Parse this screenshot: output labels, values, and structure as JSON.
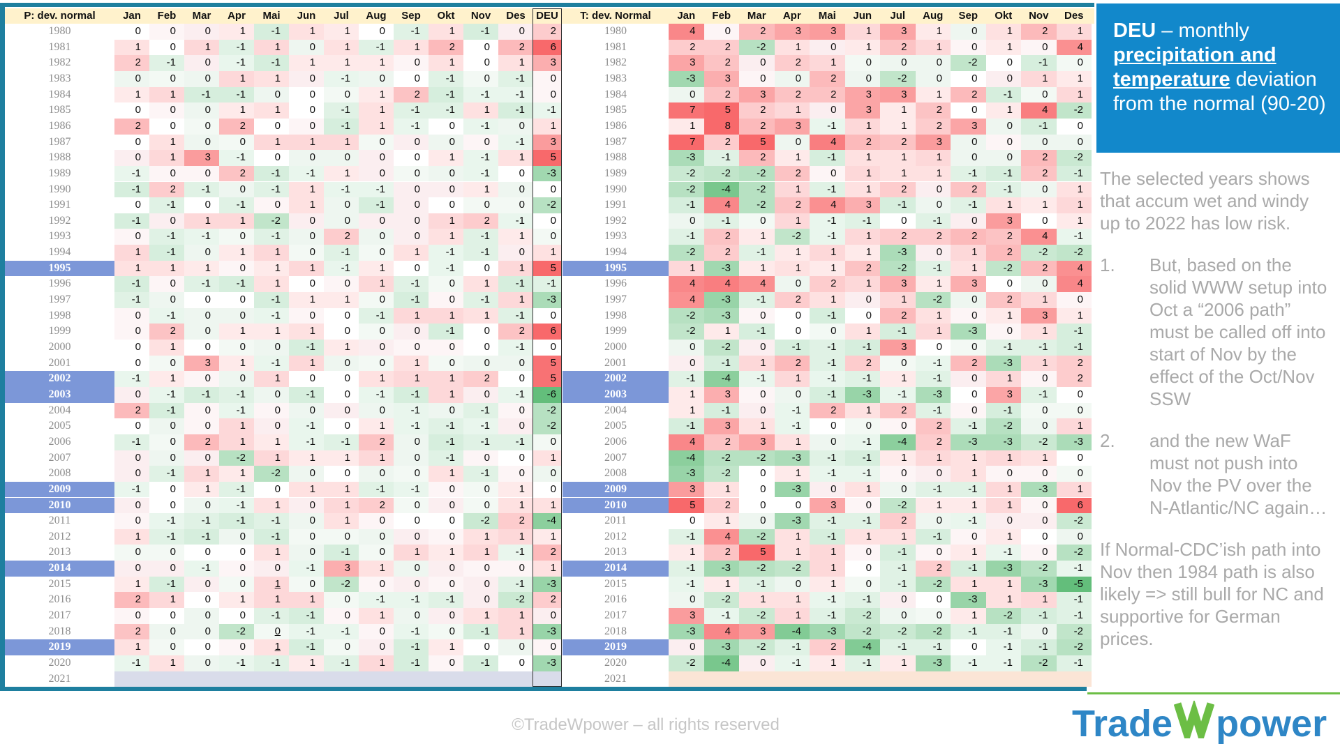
{
  "header": {
    "left_title": "P: dev. normal",
    "right_title": "T: dev. Normal",
    "deu_col": "DEU",
    "months": [
      "Jan",
      "Feb",
      "Mar",
      "Apr",
      "Mai",
      "Jun",
      "Jul",
      "Aug",
      "Sep",
      "Okt",
      "Nov",
      "Des"
    ]
  },
  "sidebar": {
    "title": {
      "bold_prefix": "DEU",
      "rest": " – monthly ",
      "underlined": "precipitation and temperature",
      "suffix": " deviation from the normal (90-20)"
    },
    "paragraph1": "The selected years shows that accum wet and windy up to 2022 has low risk.",
    "list": [
      {
        "num": "1.",
        "text": "But, based on the solid WWW setup into Oct a “2006 path” must be called off into start of Nov by the effect of the Oct/Nov SSW"
      },
      {
        "num": "2.",
        "text": "and the new WaF must not push into Nov the PV over the N-Atlantic/NC again…"
      }
    ],
    "paragraph2": "If Normal-CDC’ish path into Nov then 1984 path is also likely => still bull for NC and supportive for German prices."
  },
  "footer": {
    "copyright": "©TradeWpower – all rights reserved"
  },
  "logo": {
    "part1": "Trade",
    "w": "W",
    "part2": "power"
  },
  "colors": {
    "frame_teal": "#1e7f9f",
    "header_bg": "#fff2cc",
    "highlight_blue": "#7c97d8",
    "heat_positive_max": "#f8696b",
    "heat_negative_max": "#63be7b",
    "blank_row_left": "#d9dcea",
    "blank_row_right": "#fbe5d6",
    "sidebar_blue": "#1288cb",
    "sidebar_text_gray": "#a9a9a9",
    "logo_blue": "#2e86c6",
    "logo_green": "#6cbe45",
    "footer_gray": "#c6c6c6"
  },
  "chart_data": [
    {
      "type": "heatmap",
      "title": "P: dev. normal",
      "columns": [
        "Jan",
        "Feb",
        "Mar",
        "Apr",
        "Mai",
        "Jun",
        "Jul",
        "Aug",
        "Sep",
        "Okt",
        "Nov",
        "Des",
        "DEU"
      ],
      "years": [
        1980,
        1981,
        1982,
        1983,
        1984,
        1985,
        1986,
        1987,
        1988,
        1989,
        1990,
        1991,
        1992,
        1993,
        1994,
        1995,
        1996,
        1997,
        1998,
        1999,
        2000,
        2001,
        2002,
        2003,
        2004,
        2005,
        2006,
        2007,
        2008,
        2009,
        2010,
        2011,
        2012,
        2013,
        2014,
        2015,
        2016,
        2017,
        2018,
        2019,
        2020,
        2021
      ],
      "highlighted_years": [
        1995,
        2002,
        2003,
        2009,
        2010,
        2014,
        2019
      ],
      "underlined_cells": [
        [
          2015,
          "Mai"
        ],
        [
          2018,
          "Mai"
        ],
        [
          2019,
          "Mai"
        ]
      ],
      "values": [
        [
          0,
          0,
          0,
          1,
          -1,
          1,
          1,
          0,
          -1,
          1,
          -1,
          0,
          2
        ],
        [
          1,
          0,
          1,
          -1,
          1,
          0,
          1,
          -1,
          1,
          2,
          0,
          2,
          6
        ],
        [
          2,
          -1,
          0,
          -1,
          -1,
          1,
          1,
          1,
          0,
          1,
          0,
          1,
          3
        ],
        [
          0,
          0,
          0,
          1,
          1,
          0,
          -1,
          0,
          0,
          -1,
          0,
          -1,
          0
        ],
        [
          1,
          1,
          -1,
          -1,
          0,
          0,
          0,
          1,
          2,
          -1,
          -1,
          -1,
          0
        ],
        [
          0,
          0,
          0,
          1,
          1,
          0,
          -1,
          1,
          -1,
          -1,
          1,
          -1,
          -1
        ],
        [
          2,
          0,
          0,
          2,
          0,
          0,
          -1,
          1,
          -1,
          0,
          -1,
          0,
          1
        ],
        [
          0,
          1,
          0,
          0,
          1,
          1,
          1,
          0,
          0,
          0,
          0,
          -1,
          3
        ],
        [
          0,
          1,
          3,
          -1,
          0,
          0,
          0,
          0,
          0,
          1,
          -1,
          1,
          5
        ],
        [
          -1,
          0,
          0,
          2,
          -1,
          -1,
          1,
          0,
          0,
          0,
          -1,
          0,
          -3
        ],
        [
          -1,
          2,
          -1,
          0,
          -1,
          1,
          -1,
          -1,
          0,
          0,
          1,
          0,
          0
        ],
        [
          0,
          -1,
          0,
          -1,
          0,
          1,
          0,
          -1,
          0,
          0,
          0,
          0,
          -2
        ],
        [
          -1,
          0,
          1,
          1,
          -2,
          0,
          0,
          0,
          0,
          1,
          2,
          -1,
          0
        ],
        [
          0,
          -1,
          -1,
          0,
          -1,
          0,
          2,
          0,
          0,
          1,
          -1,
          1,
          0
        ],
        [
          1,
          -1,
          0,
          1,
          1,
          0,
          -1,
          0,
          1,
          -1,
          -1,
          0,
          1
        ],
        [
          1,
          1,
          1,
          0,
          1,
          1,
          -1,
          1,
          0,
          -1,
          0,
          1,
          5
        ],
        [
          -1,
          0,
          -1,
          -1,
          1,
          0,
          0,
          1,
          -1,
          0,
          1,
          -1,
          -1
        ],
        [
          -1,
          0,
          0,
          0,
          -1,
          1,
          1,
          0,
          -1,
          0,
          -1,
          1,
          -3
        ],
        [
          0,
          -1,
          0,
          0,
          -1,
          0,
          0,
          -1,
          1,
          1,
          1,
          -1,
          0
        ],
        [
          0,
          2,
          0,
          1,
          1,
          1,
          0,
          0,
          0,
          -1,
          0,
          2,
          6
        ],
        [
          0,
          1,
          0,
          0,
          0,
          -1,
          1,
          0,
          0,
          0,
          0,
          -1,
          0
        ],
        [
          0,
          0,
          3,
          1,
          -1,
          1,
          0,
          0,
          1,
          0,
          0,
          0,
          5
        ],
        [
          -1,
          1,
          0,
          0,
          1,
          0,
          0,
          1,
          1,
          1,
          2,
          0,
          5
        ],
        [
          0,
          -1,
          -1,
          -1,
          0,
          -1,
          0,
          -1,
          -1,
          1,
          0,
          -1,
          -6
        ],
        [
          2,
          -1,
          0,
          -1,
          0,
          0,
          0,
          0,
          -1,
          0,
          -1,
          0,
          -2
        ],
        [
          0,
          0,
          0,
          1,
          0,
          -1,
          0,
          1,
          -1,
          -1,
          -1,
          0,
          -2
        ],
        [
          -1,
          0,
          2,
          1,
          1,
          -1,
          -1,
          2,
          0,
          -1,
          -1,
          -1,
          0
        ],
        [
          0,
          0,
          0,
          -2,
          1,
          1,
          1,
          1,
          0,
          -1,
          0,
          0,
          1
        ],
        [
          0,
          -1,
          1,
          1,
          -2,
          0,
          0,
          0,
          0,
          1,
          -1,
          0,
          0
        ],
        [
          -1,
          0,
          1,
          -1,
          0,
          1,
          1,
          -1,
          -1,
          0,
          0,
          1,
          0
        ],
        [
          0,
          0,
          0,
          -1,
          1,
          0,
          1,
          2,
          0,
          0,
          0,
          1,
          1
        ],
        [
          0,
          -1,
          -1,
          -1,
          -1,
          0,
          1,
          0,
          0,
          0,
          -2,
          2,
          -4
        ],
        [
          1,
          -1,
          -1,
          0,
          -1,
          0,
          0,
          0,
          0,
          0,
          1,
          1,
          1
        ],
        [
          0,
          0,
          0,
          0,
          1,
          0,
          -1,
          0,
          1,
          1,
          1,
          -1,
          2
        ],
        [
          0,
          0,
          -1,
          0,
          0,
          -1,
          3,
          1,
          0,
          0,
          0,
          0,
          1
        ],
        [
          1,
          -1,
          0,
          0,
          1,
          0,
          -2,
          0,
          0,
          0,
          0,
          -1,
          -3
        ],
        [
          2,
          1,
          0,
          1,
          1,
          1,
          0,
          -1,
          -1,
          -1,
          0,
          -2,
          2
        ],
        [
          0,
          0,
          0,
          0,
          -1,
          -1,
          0,
          1,
          0,
          0,
          1,
          1,
          0
        ],
        [
          2,
          0,
          0,
          -2,
          0,
          -1,
          -1,
          0,
          -1,
          0,
          -1,
          1,
          -3
        ],
        [
          1,
          0,
          0,
          0,
          1,
          -1,
          0,
          0,
          -1,
          1,
          0,
          0,
          0
        ],
        [
          -1,
          1,
          0,
          -1,
          -1,
          1,
          -1,
          1,
          -1,
          0,
          -1,
          0,
          -3
        ],
        []
      ]
    },
    {
      "type": "heatmap",
      "title": "T: dev. Normal",
      "columns": [
        "Jan",
        "Feb",
        "Mar",
        "Apr",
        "Mai",
        "Jun",
        "Jul",
        "Aug",
        "Sep",
        "Okt",
        "Nov",
        "Des"
      ],
      "years": [
        1980,
        1981,
        1982,
        1983,
        1984,
        1985,
        1986,
        1987,
        1988,
        1989,
        1990,
        1991,
        1992,
        1993,
        1994,
        1995,
        1996,
        1997,
        1998,
        1999,
        2000,
        2001,
        2002,
        2003,
        2004,
        2005,
        2006,
        2007,
        2008,
        2009,
        2010,
        2011,
        2012,
        2013,
        2014,
        2015,
        2016,
        2017,
        2018,
        2019,
        2020,
        2021
      ],
      "highlighted_years": [
        1995,
        2002,
        2003,
        2009,
        2010,
        2014,
        2019
      ],
      "underlined_cells": [],
      "values": [
        [
          4,
          0,
          2,
          3,
          3,
          1,
          3,
          1,
          0,
          1,
          2,
          1
        ],
        [
          2,
          2,
          -2,
          1,
          0,
          1,
          2,
          1,
          0,
          1,
          0,
          4
        ],
        [
          3,
          2,
          0,
          2,
          1,
          0,
          0,
          0,
          -2,
          0,
          -1,
          0
        ],
        [
          -3,
          3,
          0,
          0,
          2,
          0,
          -2,
          0,
          0,
          0,
          1,
          1
        ],
        [
          0,
          2,
          3,
          2,
          2,
          3,
          3,
          1,
          2,
          -1,
          0,
          1
        ],
        [
          7,
          5,
          2,
          1,
          0,
          3,
          1,
          2,
          0,
          1,
          4,
          -2
        ],
        [
          1,
          8,
          2,
          3,
          -1,
          1,
          1,
          2,
          3,
          0,
          -1,
          0
        ],
        [
          7,
          2,
          5,
          0,
          4,
          2,
          2,
          3,
          0,
          0,
          0,
          0
        ],
        [
          -3,
          -1,
          2,
          1,
          -1,
          1,
          1,
          1,
          0,
          0,
          2,
          -2
        ],
        [
          -2,
          -2,
          -2,
          2,
          0,
          1,
          1,
          1,
          -1,
          -1,
          2,
          -1
        ],
        [
          -2,
          -4,
          -2,
          1,
          -1,
          1,
          2,
          0,
          2,
          -1,
          0,
          1
        ],
        [
          -1,
          4,
          -2,
          2,
          4,
          3,
          -1,
          0,
          -1,
          1,
          1,
          1
        ],
        [
          0,
          -1,
          0,
          1,
          -1,
          -1,
          0,
          -1,
          0,
          3,
          0,
          1
        ],
        [
          -1,
          2,
          1,
          -2,
          -1,
          1,
          2,
          2,
          2,
          2,
          4,
          -1
        ],
        [
          -2,
          2,
          -1,
          1,
          1,
          1,
          -3,
          0,
          1,
          2,
          -2,
          -2
        ],
        [
          1,
          -3,
          1,
          1,
          1,
          2,
          -2,
          -1,
          1,
          -2,
          2,
          4
        ],
        [
          4,
          4,
          4,
          0,
          2,
          1,
          3,
          1,
          3,
          0,
          0,
          4
        ],
        [
          4,
          -3,
          -1,
          2,
          1,
          0,
          1,
          -2,
          0,
          2,
          1,
          0
        ],
        [
          -2,
          -3,
          0,
          0,
          -1,
          0,
          2,
          1,
          0,
          1,
          3,
          1
        ],
        [
          -2,
          1,
          -1,
          0,
          0,
          1,
          -1,
          1,
          -3,
          0,
          1,
          -1
        ],
        [
          0,
          -2,
          0,
          -1,
          -1,
          -1,
          3,
          0,
          0,
          -1,
          -1,
          -1
        ],
        [
          0,
          -1,
          1,
          2,
          -1,
          2,
          0,
          -1,
          2,
          -3,
          1,
          2
        ],
        [
          -1,
          -4,
          -1,
          1,
          -1,
          -1,
          1,
          -1,
          0,
          1,
          0,
          2
        ],
        [
          1,
          3,
          0,
          0,
          -1,
          -3,
          -1,
          -3,
          0,
          3,
          -1,
          0
        ],
        [
          1,
          -1,
          0,
          -1,
          2,
          1,
          2,
          -1,
          0,
          -1,
          0,
          0
        ],
        [
          -1,
          3,
          1,
          -1,
          0,
          0,
          0,
          2,
          -1,
          -2,
          0,
          1
        ],
        [
          4,
          2,
          3,
          1,
          0,
          -1,
          -4,
          2,
          -3,
          -3,
          -2,
          -3
        ],
        [
          -4,
          -2,
          -2,
          -3,
          -1,
          -1,
          1,
          1,
          1,
          1,
          1,
          0
        ],
        [
          -3,
          -2,
          0,
          1,
          -1,
          -1,
          0,
          0,
          1,
          0,
          0,
          0
        ],
        [
          3,
          1,
          0,
          -3,
          0,
          1,
          0,
          -1,
          -1,
          1,
          -3,
          1
        ],
        [
          5,
          2,
          0,
          0,
          3,
          0,
          -2,
          1,
          1,
          1,
          0,
          6
        ],
        [
          0,
          1,
          0,
          -3,
          -1,
          -1,
          2,
          0,
          -1,
          0,
          0,
          -2
        ],
        [
          -1,
          4,
          -2,
          1,
          -1,
          1,
          1,
          -1,
          0,
          1,
          0,
          0
        ],
        [
          1,
          2,
          5,
          1,
          1,
          0,
          -1,
          0,
          1,
          -1,
          0,
          -2
        ],
        [
          -1,
          -3,
          -2,
          -2,
          1,
          0,
          -1,
          2,
          -1,
          -3,
          -2,
          -1
        ],
        [
          -1,
          1,
          -1,
          0,
          1,
          0,
          -1,
          -2,
          1,
          1,
          -3,
          -5
        ],
        [
          0,
          -2,
          1,
          1,
          -1,
          -1,
          0,
          0,
          -3,
          1,
          1,
          -1
        ],
        [
          3,
          -1,
          -2,
          1,
          -1,
          -2,
          0,
          0,
          1,
          -2,
          -1,
          -1
        ],
        [
          -3,
          4,
          3,
          -4,
          -3,
          -2,
          -2,
          -2,
          -1,
          -1,
          0,
          -2
        ],
        [
          0,
          -3,
          -2,
          -1,
          2,
          -4,
          -1,
          -1,
          0,
          -1,
          -1,
          -2
        ],
        [
          -2,
          -4,
          0,
          -1,
          1,
          -1,
          1,
          -3,
          -1,
          -1,
          -2,
          -1
        ],
        []
      ]
    }
  ]
}
